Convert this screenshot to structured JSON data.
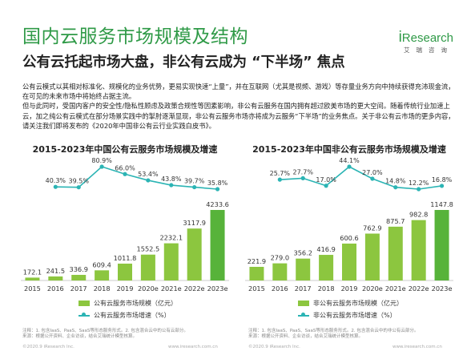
{
  "title": "国内云服务市场规模及结构",
  "subtitle": "公有云托起市场大盘，非公有云成为 “下半场” 焦点",
  "logo": {
    "text_i": "i",
    "text_rest": "Research",
    "sub": "艾瑞咨询"
  },
  "paragraph": [
    "公有云模式以其相对标准化、规模化的业务优势，更易实现快速“上量”，并在互联网（尤其是视频、游戏）等存量业务方向中持续获得充沛现金流，在可见的未来市场中将始终占据主流。",
    "但与此同时，受国内客户的安全性/隐私性顾虑及政策合规性等因素影响，非公有云服务在国内拥有超过欧美市场的更大空间。随着传统行业加速上云，加之纯公有云模式在部分场景实践中的掣肘逐渐显现，非公有云服务市场亦将成为云服务“下半场”的业务焦点。关于非公有云市场的更多内容，请关注我们即将发布的《2020年中国非公有云行业实践白皮书》。"
  ],
  "colors": {
    "bar": "#8cc63f",
    "bar_last": "#57b33a",
    "line": "#2bb4b4",
    "title": "#2f9a47"
  },
  "chart_data": [
    {
      "type": "bar",
      "title": "2015-2023年中国公有云服务市场规模及增速",
      "categories": [
        "2015",
        "2016",
        "2017",
        "2018",
        "2019",
        "2020e",
        "2021e",
        "2022e",
        "2023e"
      ],
      "series": [
        {
          "name": "公有云服务市场规模（亿元）",
          "type": "bar",
          "values": [
            172.1,
            241.5,
            336.9,
            609.4,
            1011.8,
            1552.5,
            2232.1,
            3117.9,
            4233.6
          ],
          "labels": [
            "172.1",
            "241.5",
            "336.9",
            "609.4",
            "1011.8",
            "1552.5",
            "2232.1",
            "3117.9",
            "4233.6"
          ]
        },
        {
          "name": "公有云服务市场增速（%）",
          "type": "line",
          "values": [
            null,
            40.3,
            39.5,
            80.9,
            66.0,
            53.4,
            43.8,
            39.7,
            35.8
          ],
          "labels": [
            "",
            "40.3%",
            "39.5%",
            "80.9%",
            "66.0%",
            "53.4%",
            "43.8%",
            "39.7%",
            "35.8%"
          ]
        }
      ],
      "legend_position": "bottom"
    },
    {
      "type": "bar",
      "title": "2015-2023年中国非公有云服务市场规模及增速",
      "categories": [
        "2015",
        "2016",
        "2017",
        "2018",
        "2019",
        "2020e",
        "2021e",
        "2022e",
        "2023e"
      ],
      "series": [
        {
          "name": "非公有云服务市场规模（亿元）",
          "type": "bar",
          "values": [
            221.9,
            279.0,
            356.2,
            416.9,
            600.6,
            762.9,
            875.7,
            982.8,
            1147.8
          ],
          "labels": [
            "221.9",
            "279.0",
            "356.2",
            "416.9",
            "600.6",
            "762.9",
            "875.7",
            "982.8",
            "1147.8"
          ]
        },
        {
          "name": "非公有云服务市场增速（%）",
          "type": "line",
          "values": [
            null,
            25.7,
            27.7,
            17.0,
            44.1,
            27.0,
            14.8,
            12.2,
            16.8
          ],
          "labels": [
            "",
            "25.7%",
            "27.7%",
            "17.0%",
            "44.1%",
            "27.0%",
            "14.8%",
            "12.2%",
            "16.8%"
          ]
        }
      ],
      "legend_position": "bottom"
    }
  ],
  "footnotes": [
    "注释：1. 包含IaaS、PaaS、SaaS等形态服务形式。2. 包含混合云中的公有云部分。\n来源：根据公开资料、企业访谈，结合艾瑞统计模型核算。",
    "注释：1. 包含IaaS、PaaS、SaaS等形态服务形式。2. 包含混合云中的非公有云部分。\n来源：根据公开资料、企业访谈，结合艾瑞统计模型核算。"
  ],
  "copyright": [
    "©2020.9 iResearch Inc.",
    "www.iresearch.com.cn",
    "©2020.9 iResearch Inc.",
    "www.iresearch.com.cn"
  ]
}
